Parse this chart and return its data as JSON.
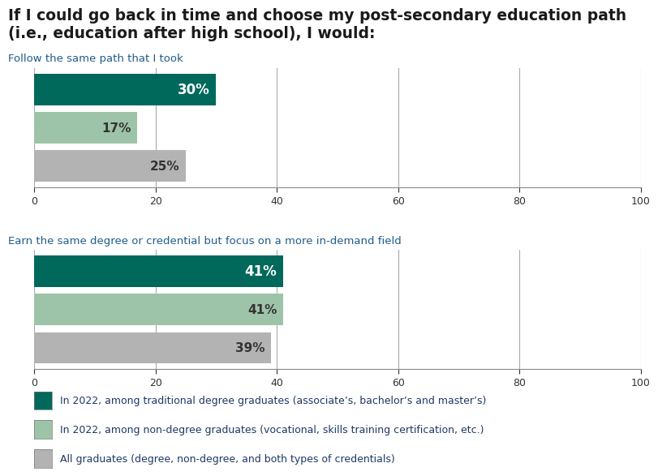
{
  "title_line1": "If I could go back in time and choose my post-secondary education path",
  "title_line2": "(i.e., education after high school), I would:",
  "title_color": "#1a1a1a",
  "title_fontsize": 13.5,
  "section1_label": "Follow the same path that I took",
  "section2_label": "Earn the same degree or credential but focus on a more in-demand field",
  "section_label_color": "#1f5c8b",
  "section_label_fontsize": 9.5,
  "group1_values": [
    30,
    17,
    25
  ],
  "group2_values": [
    41,
    41,
    39
  ],
  "bar_colors": [
    "#00695c",
    "#9dc4a8",
    "#b3b3b3"
  ],
  "bar_height": 0.82,
  "label_texts_g1": [
    "30%",
    "17%",
    "25%"
  ],
  "label_texts_g2": [
    "41%",
    "41%",
    "39%"
  ],
  "xlim": [
    0,
    100
  ],
  "xticks": [
    0,
    20,
    40,
    60,
    80,
    100
  ],
  "xlabel_fontsize": 9,
  "legend_labels": [
    "In 2022, among traditional degree graduates (associate’s, bachelor’s and master’s)",
    "In 2022, among non-degree graduates (vocational, skills training certification, etc.)",
    "All graduates (degree, non-degree, and both types of credentials)"
  ],
  "legend_colors": [
    "#00695c",
    "#9dc4a8",
    "#b3b3b3"
  ],
  "legend_fontsize": 9,
  "legend_text_color": "#1f3864",
  "background_color": "#ffffff",
  "grid_color": "#aaaaaa",
  "bar_label_fontsize_dark": 12,
  "bar_label_fontsize_light": 11,
  "bar_label_color_dark": "#ffffff",
  "bar_label_color_light": "#333333"
}
